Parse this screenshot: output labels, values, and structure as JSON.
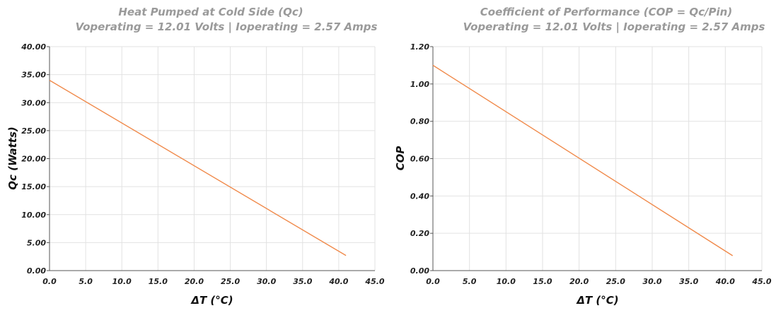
{
  "chart_data": [
    {
      "type": "line",
      "title": "Heat Pumped at Cold Side (Qc)",
      "subtitle": "Voperating = 12.01 Volts | Ioperating = 2.57 Amps",
      "xlabel": "ΔT (°C)",
      "ylabel": "Qc (Watts)",
      "xlim": [
        0,
        45
      ],
      "ylim": [
        0,
        40
      ],
      "xticks": [
        "0.0",
        "5.0",
        "10.0",
        "15.0",
        "20.0",
        "25.0",
        "30.0",
        "35.0",
        "40.0",
        "45.0"
      ],
      "yticks": [
        "0.00",
        "5.00",
        "10.00",
        "15.00",
        "20.00",
        "25.00",
        "30.00",
        "35.00",
        "40.00"
      ],
      "grid": true,
      "color": "#f08a4b",
      "series": [
        {
          "x": [
            0,
            41
          ],
          "y": [
            34.0,
            2.7
          ]
        }
      ]
    },
    {
      "type": "line",
      "title": "Coefficient of Performance (COP = Qc/Pin)",
      "subtitle": "Voperating = 12.01 Volts | Ioperating = 2.57 Amps",
      "xlabel": "ΔT (°C)",
      "ylabel": "COP",
      "xlim": [
        0,
        45
      ],
      "ylim": [
        0,
        1.2
      ],
      "xticks": [
        "0.0",
        "5.0",
        "10.0",
        "15.0",
        "20.0",
        "25.0",
        "30.0",
        "35.0",
        "40.0",
        "45.0"
      ],
      "yticks": [
        "0.00",
        "0.20",
        "0.40",
        "0.60",
        "0.80",
        "1.00",
        "1.20"
      ],
      "grid": true,
      "color": "#f08a4b",
      "series": [
        {
          "x": [
            0,
            41
          ],
          "y": [
            1.1,
            0.08
          ]
        }
      ]
    }
  ]
}
